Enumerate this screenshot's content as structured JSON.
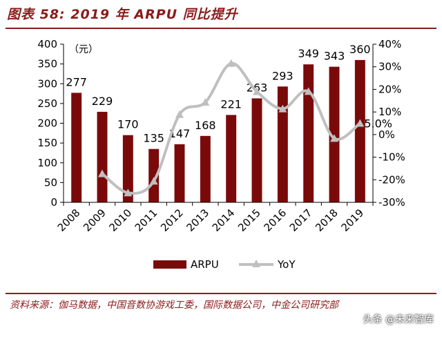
{
  "header": {
    "title": "图表 58: 2019 年 ARPU 同比提升"
  },
  "footer": {
    "source": "资料来源：伽马数据，中国音数协游戏工委，国际数据公司，中金公司研究部",
    "watermark": "头条 @未来智库"
  },
  "chart_data": {
    "type": "bar",
    "categories": [
      "2008",
      "2009",
      "2010",
      "2011",
      "2012",
      "2013",
      "2014",
      "2015",
      "2016",
      "2017",
      "2018",
      "2019"
    ],
    "unit_label": "（元）",
    "series": [
      {
        "name": "ARPU",
        "type": "bar",
        "axis": "left",
        "values": [
          277,
          229,
          170,
          135,
          147,
          168,
          221,
          263,
          293,
          349,
          343,
          360
        ]
      },
      {
        "name": "YoY",
        "type": "line",
        "axis": "right",
        "values": [
          null,
          -17.3,
          -25.8,
          -20.6,
          8.9,
          14.3,
          31.5,
          19.0,
          11.4,
          19.1,
          -1.7,
          5.0
        ]
      }
    ],
    "y_left": {
      "min": 0,
      "max": 400,
      "step": 50,
      "ticks": [
        "0",
        "50",
        "100",
        "150",
        "200",
        "250",
        "300",
        "350",
        "400"
      ]
    },
    "y_right": {
      "min": -30,
      "max": 40,
      "step": 10,
      "ticks": [
        "-30%",
        "-20%",
        "-10%",
        "0%",
        "10%",
        "20%",
        "30%",
        "40%"
      ]
    },
    "annotations": [
      {
        "series": "YoY",
        "index": 11,
        "text": "5.0%"
      }
    ],
    "legend": {
      "position": "bottom"
    },
    "grid": false,
    "colors": {
      "bar": "#7a0a0a",
      "line": "#bfbfbf"
    }
  }
}
